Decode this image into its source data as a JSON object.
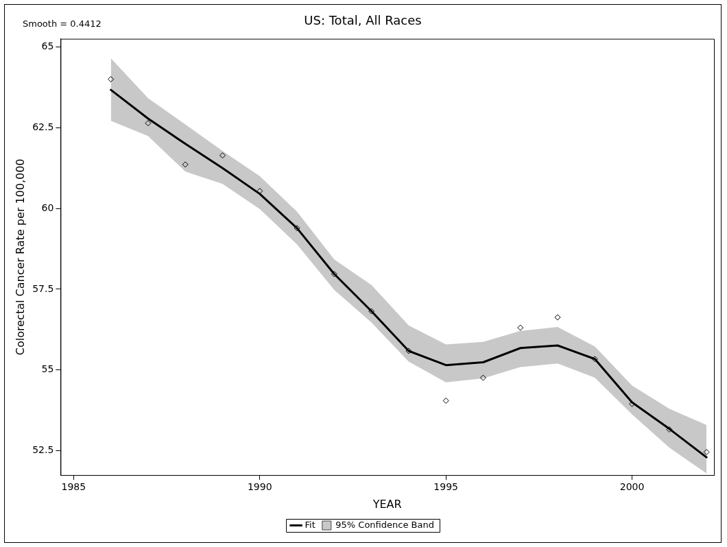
{
  "chart_data": {
    "type": "line",
    "title": "US: Total, All Races",
    "xlabel": "YEAR",
    "ylabel": "Colorectal Cancer Rate per 100,000",
    "annotations": [
      "Smooth = 0.4412"
    ],
    "x": [
      1986,
      1987,
      1988,
      1989,
      1990,
      1991,
      1992,
      1993,
      1994,
      1995,
      1996,
      1997,
      1998,
      1999,
      2000,
      2001,
      2002
    ],
    "series": [
      {
        "name": "Fit",
        "color": "#000000",
        "marker": "none",
        "values": [
          63.67,
          62.78,
          62.0,
          61.25,
          60.45,
          59.39,
          57.97,
          56.82,
          55.59,
          55.15,
          55.24,
          55.68,
          55.76,
          55.34,
          54.0,
          53.18,
          52.3
        ]
      },
      {
        "type": "area",
        "name": "95% Confidence Band",
        "color": "#c8c8c8",
        "values": [
          null,
          null,
          null,
          null,
          null,
          null,
          null,
          null,
          null,
          null,
          null,
          null,
          null,
          null,
          null,
          null,
          null
        ],
        "lower": [
          62.71,
          62.24,
          61.14,
          60.76,
          59.98,
          58.89,
          57.48,
          56.47,
          55.26,
          54.62,
          54.74,
          55.09,
          55.2,
          54.76,
          53.63,
          52.6,
          51.8
        ],
        "upper": [
          64.65,
          63.41,
          62.6,
          61.78,
          61.0,
          59.9,
          58.42,
          57.63,
          56.38,
          55.79,
          55.87,
          56.21,
          56.33,
          55.73,
          54.52,
          53.8,
          53.3
        ]
      },
      {
        "type": "scatter",
        "color": "#000000",
        "marker": "diamond",
        "values": [
          64.0,
          62.64,
          61.36,
          61.64,
          60.54,
          59.39,
          57.97,
          56.82,
          55.59,
          54.05,
          54.76,
          56.31,
          56.63,
          55.34,
          53.95,
          53.16,
          52.46
        ]
      }
    ],
    "xlim": [
      1984.65,
      2002.2
    ],
    "xticks": [
      1985,
      1990,
      1995,
      2000
    ],
    "ylim": [
      51.75,
      65.25
    ],
    "yticks": [
      52.5,
      55,
      57.5,
      60,
      62.5,
      65
    ],
    "grid": false,
    "legend": "bottom"
  }
}
